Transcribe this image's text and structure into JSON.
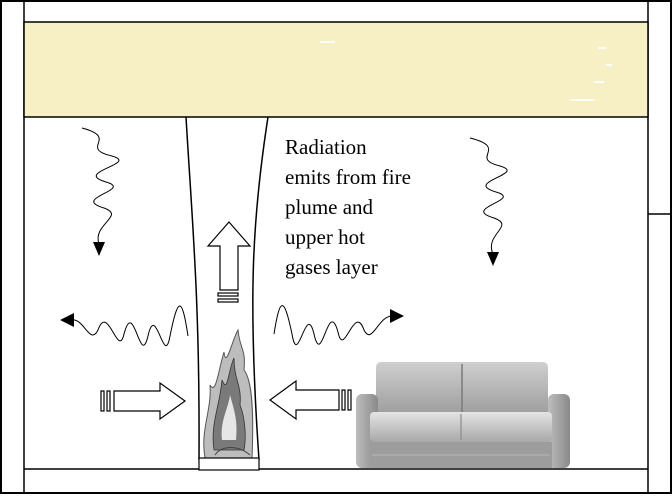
{
  "caption": {
    "lines": [
      "Radiation",
      "emits from fire",
      "plume and",
      "upper hot",
      "gases layer"
    ]
  },
  "colors": {
    "hot_layer_fill": "#f7f0c4",
    "outline": "#000000",
    "background": "#ffffff",
    "sofa_light": "#d9d9d9",
    "sofa_dark": "#8a8a8a",
    "flame": "#7a7a7a"
  },
  "icons": {
    "wavy_radiation": "wavy-arrow-icon",
    "inflow_air": "block-arrow-icon",
    "sofa": "sofa-icon",
    "flame": "flame-icon"
  }
}
